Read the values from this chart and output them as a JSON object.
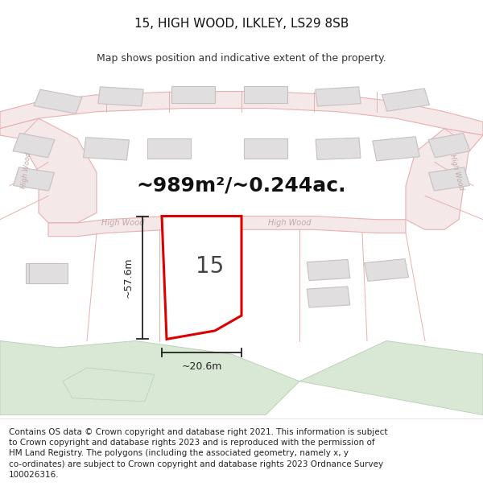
{
  "title": "15, HIGH WOOD, ILKLEY, LS29 8SB",
  "subtitle": "Map shows position and indicative extent of the property.",
  "area_text": "~989m²/~0.244ac.",
  "dim_vertical": "~57.6m",
  "dim_horizontal": "~20.6m",
  "property_number": "15",
  "footer_text": "Contains OS data © Crown copyright and database right 2021. This information is subject\nto Crown copyright and database rights 2023 and is reproduced with the permission of\nHM Land Registry. The polygons (including the associated geometry, namely x, y\nco-ordinates) are subject to Crown copyright and database rights 2023 Ordnance Survey\n100026316.",
  "bg_color": "#ffffff",
  "map_bg": "#f0eeee",
  "road_fill": "#f5e8e8",
  "road_edge": "#e8b0b0",
  "building_fill": "#e0dede",
  "building_edge": "#c8c0c0",
  "property_color": "#dd0000",
  "green_fill": "#d8e8d4",
  "green_edge": "#b8ccb4",
  "dim_color": "#222222",
  "street_color": "#c0a8a8",
  "title_fs": 11,
  "subtitle_fs": 9,
  "area_fs": 18,
  "footer_fs": 7.5,
  "dim_fs": 9,
  "num_fs": 20,
  "street_fs": 7
}
